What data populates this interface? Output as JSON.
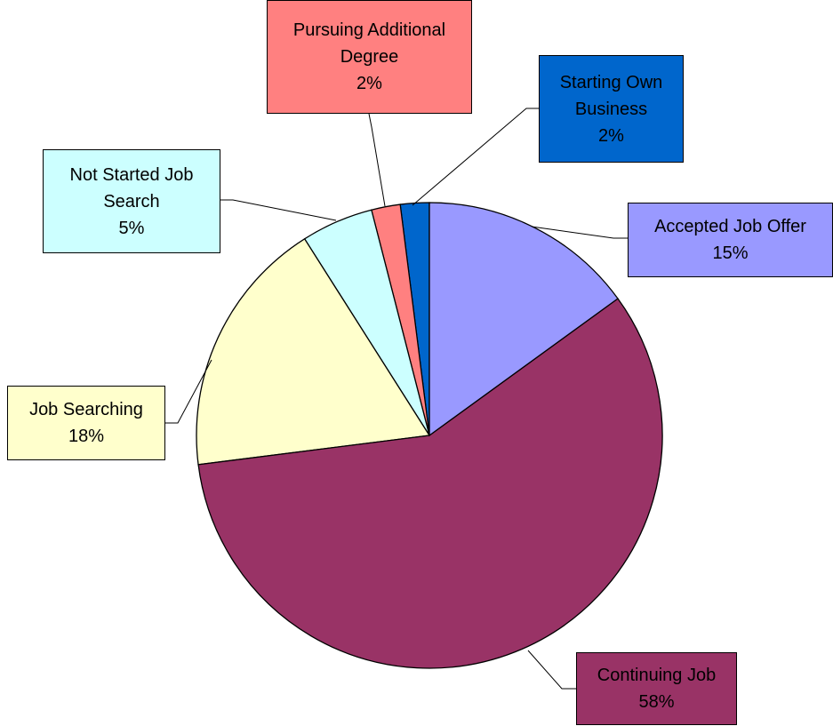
{
  "chart_data": {
    "type": "pie",
    "categories": [
      "Accepted Job Offer",
      "Continuing Job",
      "Job Searching",
      "Not Started Job Search",
      "Pursuing Additional Degree",
      "Starting Own Business"
    ],
    "values": [
      15,
      58,
      18,
      5,
      2,
      2
    ],
    "value_labels": [
      "15%",
      "58%",
      "18%",
      "5%",
      "2%",
      "2%"
    ],
    "colors": [
      "#9999ff",
      "#993366",
      "#ffffcc",
      "#ccffff",
      "#ff8080",
      "#0066cc"
    ]
  }
}
